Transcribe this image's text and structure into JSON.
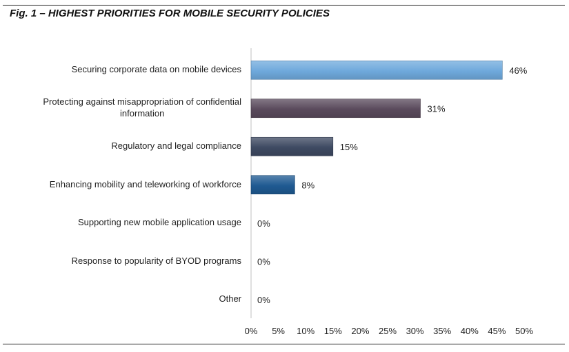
{
  "figure": {
    "title": "Fig. 1 – HIGHEST PRIORITIES FOR MOBILE SECURITY POLICIES"
  },
  "chart_data": {
    "type": "bar",
    "orientation": "horizontal",
    "title": "Fig. 1 – HIGHEST PRIORITIES FOR MOBILE SECURITY POLICIES",
    "xlabel": "",
    "ylabel": "",
    "xlim": [
      0,
      50
    ],
    "x_ticks": [
      "0%",
      "5%",
      "10%",
      "15%",
      "20%",
      "25%",
      "30%",
      "35%",
      "40%",
      "45%",
      "50%"
    ],
    "grid": false,
    "legend": "none",
    "categories": [
      [
        "Securing corporate data on mobile devices"
      ],
      [
        "Protecting against misappropriation of confidential",
        "information"
      ],
      [
        "Regulatory and legal compliance"
      ],
      [
        "Enhancing mobility and teleworking of workforce"
      ],
      [
        "Supporting new mobile application usage"
      ],
      [
        "Response to popularity of BYOD programs"
      ],
      [
        "Other"
      ]
    ],
    "values": [
      46,
      31,
      15,
      8,
      0,
      0,
      0
    ],
    "data_labels": [
      "46%",
      "31%",
      "15%",
      "8%",
      "0%",
      "0%",
      "0%"
    ],
    "colors": [
      "#6fa9dc",
      "#5a4a5c",
      "#3e4a62",
      "#1f5a92",
      "#6fa9dc",
      "#6fa9dc",
      "#6fa9dc"
    ],
    "axis_color": "#bfbfbf"
  }
}
